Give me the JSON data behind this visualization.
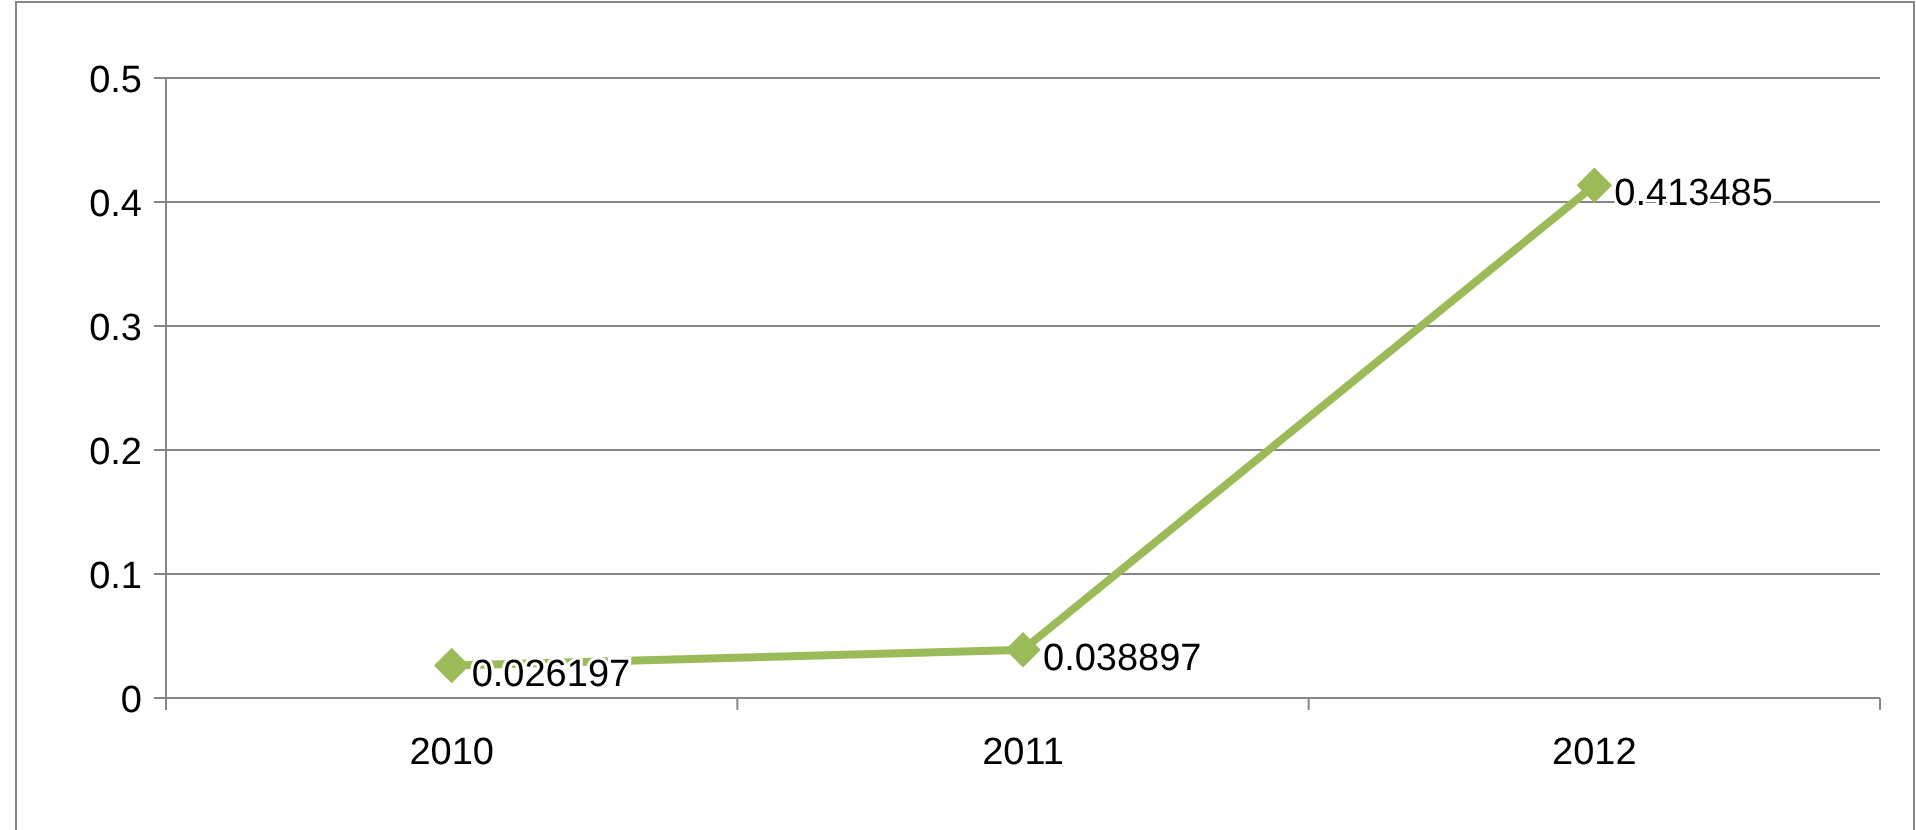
{
  "chart_data": {
    "type": "line",
    "categories": [
      "2010",
      "2011",
      "2012"
    ],
    "series": [
      {
        "color": "#9bbb59",
        "values": [
          0.026197,
          0.038897,
          0.413485
        ]
      }
    ],
    "ylim": [
      0,
      0.5
    ],
    "yticks": [
      0,
      0.1,
      0.2,
      0.3,
      0.4,
      0.5
    ],
    "grid": "y",
    "marker": "diamond",
    "line_style": "solid",
    "data_labels": true
  }
}
